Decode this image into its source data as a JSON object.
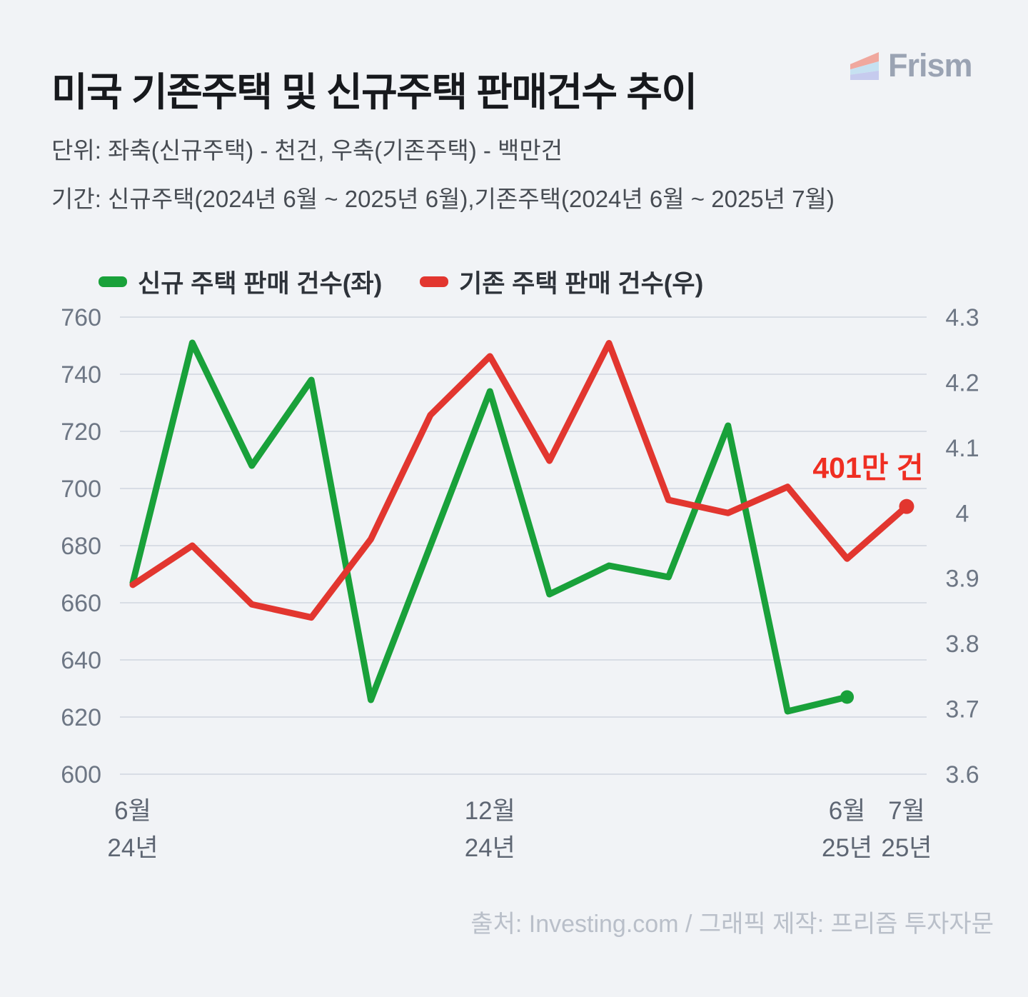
{
  "header": {
    "title": "미국 기존주택 및 신규주택 판매건수 추이",
    "logo_text": "Frism",
    "logo_stripe_colors": [
      "#f0a89e",
      "#c6e1f1",
      "#c6cbee"
    ],
    "logo_text_color": "#9aa3b3"
  },
  "subtitles": {
    "unit": "단위: 좌축(신규주택) - 천건, 우축(기존주택) - 백만건",
    "period": "기간: 신규주택(2024년 6월 ~ 2025년 6월),기존주택(2024년 6월 ~ 2025년 7월)"
  },
  "legend": {
    "items": [
      {
        "label": "신규 주택 판매 건수(좌)",
        "color": "#19a13a"
      },
      {
        "label": "기존 주택 판매 건수(우)",
        "color": "#e2362f"
      }
    ]
  },
  "chart_data": {
    "type": "line",
    "x": [
      "2024-06",
      "2024-07",
      "2024-08",
      "2024-09",
      "2024-10",
      "2024-11",
      "2024-12",
      "2025-01",
      "2025-02",
      "2025-03",
      "2025-04",
      "2025-05",
      "2025-06",
      "2025-07"
    ],
    "x_tick_labels": [
      {
        "index": 0,
        "month": "6월",
        "year": "24년"
      },
      {
        "index": 6,
        "month": "12월",
        "year": "24년"
      },
      {
        "index": 12,
        "month": "6월",
        "year": "25년"
      },
      {
        "index": 13,
        "month": "7월",
        "year": "25년"
      }
    ],
    "left_axis": {
      "min": 600,
      "max": 760,
      "ticks": [
        760,
        740,
        720,
        700,
        680,
        660,
        640,
        620,
        600
      ]
    },
    "right_axis": {
      "min": 3.6,
      "max": 4.3,
      "ticks": [
        4.3,
        4.2,
        4.1,
        4,
        3.9,
        3.8,
        3.7,
        3.6
      ]
    },
    "grid": true,
    "legend_position": "top",
    "series": [
      {
        "name": "신규 주택 판매 건수(좌)",
        "axis": "left",
        "color": "#19a13a",
        "values": [
          667,
          751,
          708,
          738,
          626,
          680,
          734,
          663,
          673,
          669,
          722,
          622,
          627
        ]
      },
      {
        "name": "기존 주택 판매 건수(우)",
        "axis": "right",
        "color": "#e2362f",
        "values": [
          3.89,
          3.95,
          3.86,
          3.84,
          3.96,
          4.15,
          4.24,
          4.08,
          4.26,
          4.02,
          4.0,
          4.04,
          3.93,
          4.01
        ]
      }
    ],
    "annotation": {
      "text": "401만 건",
      "color": "#ef2e22"
    }
  },
  "footer": {
    "source": "출처: Investing.com / 그래픽 제작: 프리즘 투자자문"
  }
}
